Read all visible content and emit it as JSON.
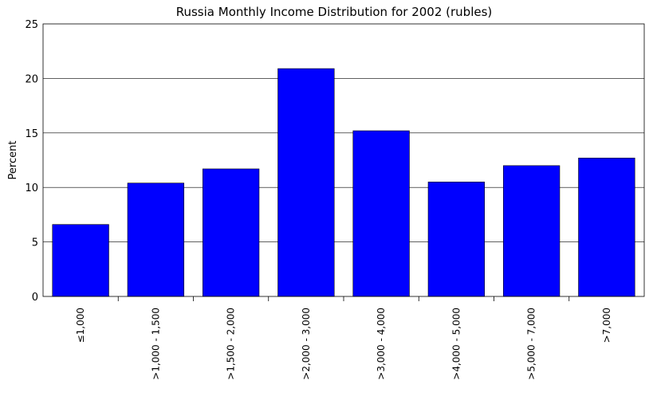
{
  "chart_data": {
    "type": "bar",
    "title": "Russia Monthly Income Distribution for 2002 (rubles)",
    "xlabel": "",
    "ylabel": "Percent",
    "categories": [
      "≤1,000",
      ">1,000 - 1,500",
      ">1,500 - 2,000",
      ">2,000 - 3,000",
      ">3,000 - 4,000",
      ">4,000 - 5,000",
      ">5,000 - 7,000",
      ">7,000"
    ],
    "values": [
      6.6,
      10.4,
      11.7,
      20.9,
      15.2,
      10.5,
      12.0,
      12.7
    ],
    "ylim": [
      0,
      25
    ],
    "yticks": [
      0,
      5,
      10,
      15,
      20,
      25
    ],
    "grid": true,
    "legend": "none",
    "bar_color": "#0000ff"
  }
}
